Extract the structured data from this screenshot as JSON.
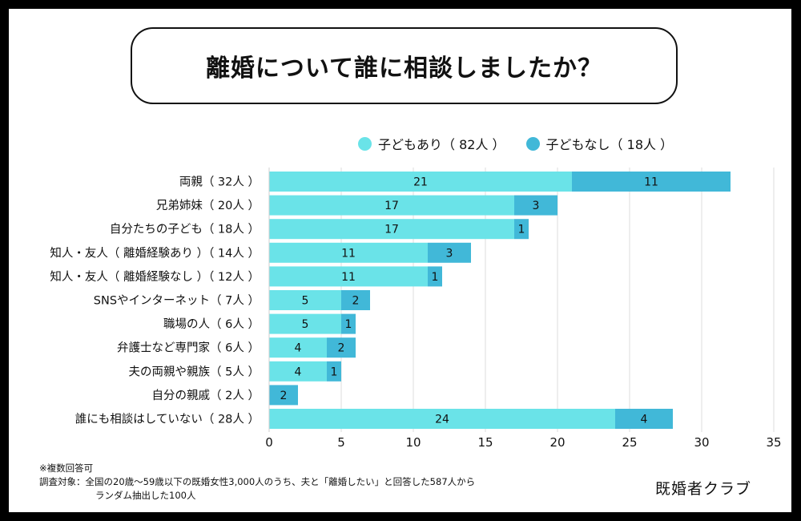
{
  "title": "離婚について誰に相談しましたか？",
  "legend": {
    "with_children": "子どもあり（ 82人 ）",
    "without_children": "子どもなし（ 18人 ）"
  },
  "colors": {
    "with_children": "#6ae3e8",
    "without_children": "#41b8d8",
    "grid": "#dcdcdc"
  },
  "chart_data": {
    "type": "bar",
    "orientation": "horizontal",
    "stacked": true,
    "categories": [
      "両親（ 32人 ）",
      "兄弟姉妹（ 20人 ）",
      "自分たちの子ども（ 18人 ）",
      "知人・友人（ 離婚経験あり ）（ 14人 ）",
      "知人・友人（ 離婚経験なし ）（ 12人 ）",
      "SNSやインターネット（ 7人 ）",
      "職場の人（ 6人 ）",
      "弁護士など専門家（ 6人 ）",
      "夫の両親や親族（ 5人 ）",
      "自分の親戚（ 2人 ）",
      "誰にも相談はしていない（ 28人 ）"
    ],
    "series": [
      {
        "name": "子どもあり（ 82人 ）",
        "values": [
          21,
          17,
          17,
          11,
          11,
          5,
          5,
          4,
          4,
          0,
          24
        ]
      },
      {
        "name": "子どもなし（ 18人 ）",
        "values": [
          11,
          3,
          1,
          3,
          1,
          2,
          1,
          2,
          1,
          2,
          4
        ]
      }
    ],
    "xlim": [
      0,
      35
    ],
    "xticks": [
      0,
      5,
      10,
      15,
      20,
      25,
      30,
      35
    ],
    "grid": true,
    "legend_position": "top"
  },
  "notes": {
    "line1": "※複数回答可",
    "line2": "調査対象：全国の20歳〜59歳以下の既婚女性3,000人のうち、夫と「離婚したい」と回答した587人から",
    "line3": "ランダム抽出した100人"
  },
  "brand": "既婚者クラブ"
}
